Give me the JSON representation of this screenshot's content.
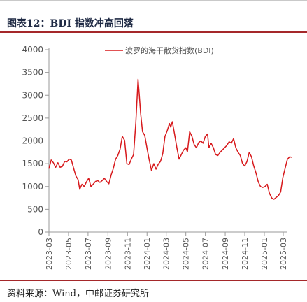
{
  "header": {
    "title": "图表12：BDI 指数冲高回落"
  },
  "footer": {
    "source": "资料来源：Wind，中邮证券研究所"
  },
  "chart_data": {
    "type": "line",
    "title": "",
    "xlabel": "",
    "ylabel": "",
    "ylim": [
      0,
      4000
    ],
    "yticks": [
      0,
      500,
      1000,
      1500,
      2000,
      2500,
      3000,
      3500,
      4000
    ],
    "xticks": [
      "2023-03",
      "2023-05",
      "2023-07",
      "2023-09",
      "2023-11",
      "2024-01",
      "2024-03",
      "2024-05",
      "2024-07",
      "2024-09",
      "2024-11",
      "2025-01",
      "2025-03"
    ],
    "legend_position": "top-right",
    "grid": false,
    "series": [
      {
        "name": "波罗的海干散货指数(BDI)",
        "color": "#d7191c",
        "points": [
          [
            "2023-03-01",
            1390
          ],
          [
            "2023-03-08",
            1580
          ],
          [
            "2023-03-15",
            1520
          ],
          [
            "2023-03-22",
            1420
          ],
          [
            "2023-03-29",
            1520
          ],
          [
            "2023-04-05",
            1420
          ],
          [
            "2023-04-12",
            1440
          ],
          [
            "2023-04-19",
            1550
          ],
          [
            "2023-04-26",
            1540
          ],
          [
            "2023-05-03",
            1600
          ],
          [
            "2023-05-10",
            1580
          ],
          [
            "2023-05-17",
            1400
          ],
          [
            "2023-05-24",
            1230
          ],
          [
            "2023-05-31",
            1150
          ],
          [
            "2023-06-05",
            940
          ],
          [
            "2023-06-12",
            1050
          ],
          [
            "2023-06-19",
            1000
          ],
          [
            "2023-06-26",
            1100
          ],
          [
            "2023-07-03",
            1180
          ],
          [
            "2023-07-10",
            1000
          ],
          [
            "2023-07-17",
            1050
          ],
          [
            "2023-07-24",
            1110
          ],
          [
            "2023-07-31",
            1130
          ],
          [
            "2023-08-07",
            1090
          ],
          [
            "2023-08-14",
            1130
          ],
          [
            "2023-08-21",
            1180
          ],
          [
            "2023-08-28",
            1110
          ],
          [
            "2023-09-04",
            1060
          ],
          [
            "2023-09-11",
            1250
          ],
          [
            "2023-09-18",
            1400
          ],
          [
            "2023-09-25",
            1600
          ],
          [
            "2023-10-02",
            1680
          ],
          [
            "2023-10-09",
            1820
          ],
          [
            "2023-10-16",
            2100
          ],
          [
            "2023-10-23",
            2010
          ],
          [
            "2023-10-30",
            1500
          ],
          [
            "2023-11-06",
            1480
          ],
          [
            "2023-11-13",
            1600
          ],
          [
            "2023-11-20",
            1700
          ],
          [
            "2023-11-27",
            2400
          ],
          [
            "2023-12-04",
            3350
          ],
          [
            "2023-12-08",
            3000
          ],
          [
            "2023-12-12",
            2600
          ],
          [
            "2023-12-18",
            2200
          ],
          [
            "2023-12-25",
            2120
          ],
          [
            "2024-01-02",
            1800
          ],
          [
            "2024-01-08",
            1580
          ],
          [
            "2024-01-15",
            1350
          ],
          [
            "2024-01-22",
            1500
          ],
          [
            "2024-01-29",
            1380
          ],
          [
            "2024-02-05",
            1490
          ],
          [
            "2024-02-12",
            1550
          ],
          [
            "2024-02-19",
            1720
          ],
          [
            "2024-02-26",
            2100
          ],
          [
            "2024-03-04",
            2220
          ],
          [
            "2024-03-11",
            2380
          ],
          [
            "2024-03-15",
            2300
          ],
          [
            "2024-03-20",
            2420
          ],
          [
            "2024-03-27",
            2150
          ],
          [
            "2024-04-03",
            1850
          ],
          [
            "2024-04-10",
            1600
          ],
          [
            "2024-04-17",
            1700
          ],
          [
            "2024-04-24",
            1800
          ],
          [
            "2024-05-01",
            1850
          ],
          [
            "2024-05-06",
            1760
          ],
          [
            "2024-05-13",
            2200
          ],
          [
            "2024-05-20",
            2100
          ],
          [
            "2024-05-27",
            1920
          ],
          [
            "2024-06-03",
            1850
          ],
          [
            "2024-06-10",
            1960
          ],
          [
            "2024-06-17",
            2000
          ],
          [
            "2024-06-24",
            1950
          ],
          [
            "2024-07-01",
            2100
          ],
          [
            "2024-07-08",
            2150
          ],
          [
            "2024-07-12",
            1850
          ],
          [
            "2024-07-19",
            1950
          ],
          [
            "2024-07-26",
            1850
          ],
          [
            "2024-08-02",
            1700
          ],
          [
            "2024-08-09",
            1680
          ],
          [
            "2024-08-16",
            1750
          ],
          [
            "2024-08-23",
            1800
          ],
          [
            "2024-08-30",
            1850
          ],
          [
            "2024-09-06",
            1900
          ],
          [
            "2024-09-13",
            1980
          ],
          [
            "2024-09-20",
            1950
          ],
          [
            "2024-09-27",
            2050
          ],
          [
            "2024-10-04",
            1850
          ],
          [
            "2024-10-11",
            1750
          ],
          [
            "2024-10-18",
            1680
          ],
          [
            "2024-10-25",
            1500
          ],
          [
            "2024-11-01",
            1450
          ],
          [
            "2024-11-08",
            1550
          ],
          [
            "2024-11-15",
            1750
          ],
          [
            "2024-11-22",
            1650
          ],
          [
            "2024-11-29",
            1450
          ],
          [
            "2024-12-06",
            1300
          ],
          [
            "2024-12-13",
            1100
          ],
          [
            "2024-12-20",
            1000
          ],
          [
            "2024-12-27",
            980
          ],
          [
            "2025-01-03",
            1000
          ],
          [
            "2025-01-10",
            1050
          ],
          [
            "2025-01-17",
            850
          ],
          [
            "2025-01-24",
            750
          ],
          [
            "2025-01-31",
            720
          ],
          [
            "2025-02-07",
            760
          ],
          [
            "2025-02-14",
            800
          ],
          [
            "2025-02-21",
            880
          ],
          [
            "2025-02-28",
            1200
          ],
          [
            "2025-03-07",
            1400
          ],
          [
            "2025-03-14",
            1600
          ],
          [
            "2025-03-21",
            1650
          ],
          [
            "2025-03-28",
            1640
          ]
        ]
      }
    ]
  }
}
